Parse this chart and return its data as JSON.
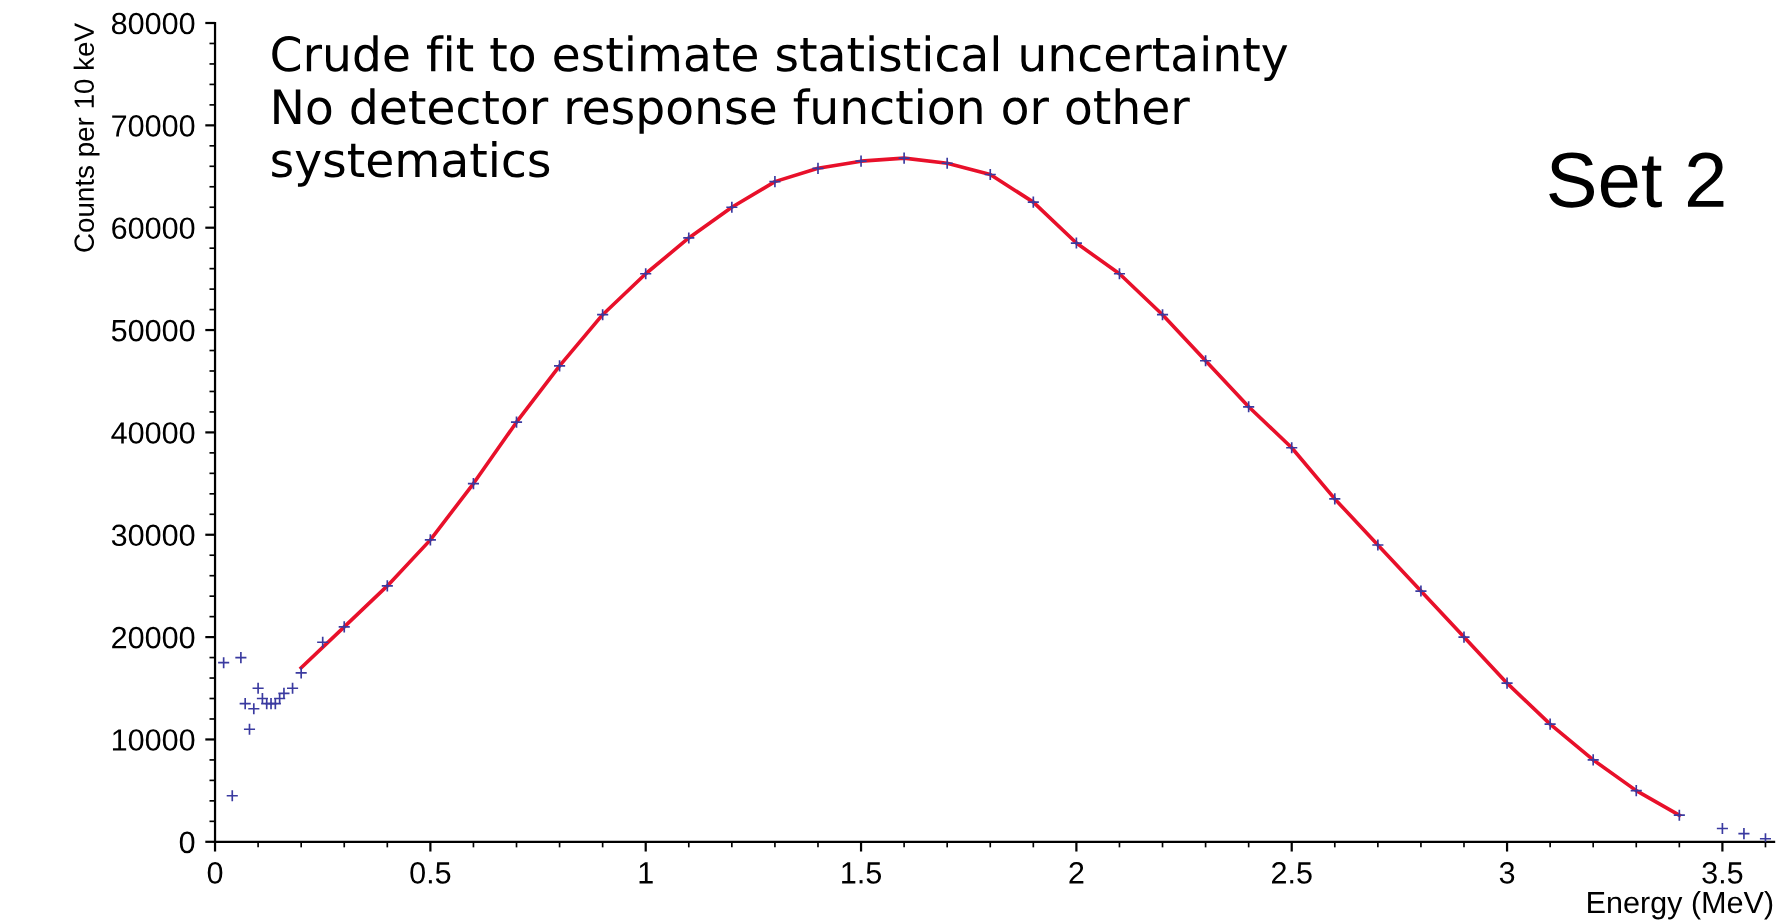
{
  "chart_data": {
    "type": "scatter",
    "xlabel": "Energy (MeV)",
    "ylabel": "Counts per 10 keV",
    "annotations": [
      "Crude fit to estimate statistical uncertainty\nNo detector response function or other\nsystematics",
      "Set 2"
    ],
    "xlim": [
      0,
      3.62
    ],
    "ylim": [
      0,
      80000
    ],
    "xticks": [
      0,
      0.5,
      1,
      1.5,
      2,
      2.5,
      3,
      3.5
    ],
    "yticks": [
      0,
      10000,
      20000,
      30000,
      40000,
      50000,
      60000,
      70000,
      80000
    ],
    "grid": false,
    "series": [
      {
        "marker": "cross",
        "color": "#3a3aa0",
        "x": [
          0.02,
          0.04,
          0.06,
          0.07,
          0.08,
          0.09,
          0.1,
          0.11,
          0.12,
          0.13,
          0.14,
          0.15,
          0.16,
          0.18,
          0.2,
          0.25,
          0.3,
          0.4,
          0.5,
          0.6,
          0.7,
          0.8,
          0.9,
          1.0,
          1.1,
          1.2,
          1.3,
          1.4,
          1.5,
          1.6,
          1.7,
          1.8,
          1.9,
          2.0,
          2.1,
          2.2,
          2.3,
          2.4,
          2.5,
          2.6,
          2.7,
          2.8,
          2.9,
          3.0,
          3.1,
          3.2,
          3.3,
          3.4,
          3.5,
          3.55,
          3.6
        ],
        "values": [
          17500,
          4500,
          18000,
          13500,
          11000,
          13000,
          15000,
          14000,
          13500,
          13500,
          13500,
          14000,
          14500,
          15000,
          16500,
          19500,
          21000,
          25000,
          29500,
          35000,
          41000,
          46500,
          51500,
          55500,
          59000,
          62000,
          64500,
          65800,
          66500,
          66800,
          66300,
          65200,
          62500,
          58500,
          55500,
          51500,
          47000,
          42500,
          38500,
          33500,
          29000,
          24500,
          20000,
          15500,
          11500,
          8000,
          5000,
          2600,
          1300,
          800,
          300
        ]
      },
      {
        "type": "line",
        "color": "#e8102a",
        "x": [
          0.2,
          0.3,
          0.4,
          0.5,
          0.6,
          0.7,
          0.8,
          0.9,
          1.0,
          1.1,
          1.2,
          1.3,
          1.4,
          1.5,
          1.6,
          1.7,
          1.8,
          1.9,
          2.0,
          2.1,
          2.2,
          2.3,
          2.4,
          2.5,
          2.6,
          2.7,
          2.8,
          2.9,
          3.0,
          3.1,
          3.2,
          3.3,
          3.4
        ],
        "values": [
          17000,
          21000,
          25000,
          29500,
          35000,
          41000,
          46500,
          51500,
          55500,
          59000,
          62000,
          64500,
          65800,
          66500,
          66800,
          66300,
          65200,
          62500,
          58500,
          55500,
          51500,
          47000,
          42500,
          38500,
          33500,
          29000,
          24500,
          20000,
          15500,
          11500,
          8000,
          5000,
          2600
        ]
      }
    ]
  }
}
